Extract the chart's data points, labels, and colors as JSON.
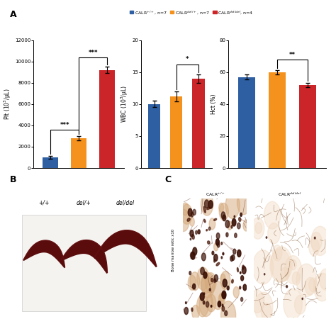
{
  "colors": {
    "blue": "#2E5FA3",
    "orange": "#F5921E",
    "red": "#CC2529"
  },
  "legend_labels": [
    "CALR$^{+/+}$, n=7",
    "CALR$^{del/+}$, n=7",
    "CALR$^{del/del}$, n=4"
  ],
  "plt_data": {
    "ylabel": "Plt (10$^3$/μL)",
    "ylim": [
      0,
      12000
    ],
    "yticks": [
      0,
      2000,
      4000,
      6000,
      8000,
      10000,
      12000
    ],
    "values": [
      1000,
      2800,
      9200
    ],
    "errors": [
      150,
      200,
      300
    ],
    "sig_low": "***",
    "sig_high": "***"
  },
  "wbc_data": {
    "ylabel": "WBC (10$^3$/μL)",
    "ylim": [
      0,
      20
    ],
    "yticks": [
      0,
      5,
      10,
      15,
      20
    ],
    "values": [
      10.0,
      11.2,
      14.0
    ],
    "errors": [
      0.5,
      0.8,
      0.7
    ],
    "sig": "*"
  },
  "hct_data": {
    "ylabel": "Hct (%)",
    "ylim": [
      0,
      80
    ],
    "yticks": [
      0,
      20,
      40,
      60,
      80
    ],
    "values": [
      57,
      60,
      52
    ],
    "errors": [
      1.5,
      1.5,
      1.5
    ],
    "sig": "**"
  },
  "background_color": "#FFFFFF",
  "spleen_bg": "#FFFFFF",
  "photo_bg": "#f5f3f0",
  "spleen_color": "#5a0c0c",
  "spleen_labels": [
    "+/+",
    "del/+",
    "del/del"
  ],
  "micro_label_left": "CALR$^{+/+}$",
  "micro_label_right": "CALR$^{del/del}$",
  "micro_ylabel": "Bone marrow retic x10",
  "micro_bg_left": "#c8956a",
  "micro_bg_right": "#dfc4a8",
  "panel_labels": [
    "A",
    "B",
    "C"
  ]
}
